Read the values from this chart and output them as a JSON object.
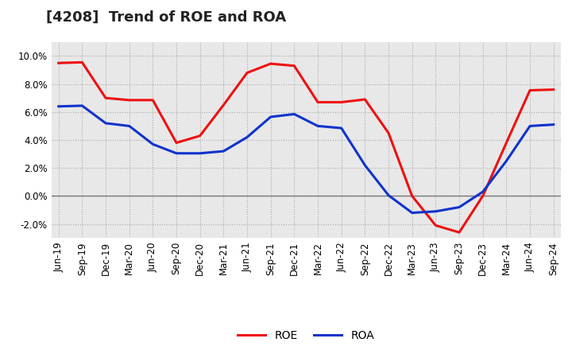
{
  "title": "[4208]  Trend of ROE and ROA",
  "x_labels": [
    "Jun-19",
    "Sep-19",
    "Dec-19",
    "Mar-20",
    "Jun-20",
    "Sep-20",
    "Dec-20",
    "Mar-21",
    "Jun-21",
    "Sep-21",
    "Dec-21",
    "Mar-22",
    "Jun-22",
    "Sep-22",
    "Dec-22",
    "Mar-23",
    "Jun-23",
    "Sep-23",
    "Dec-23",
    "Mar-24",
    "Jun-24",
    "Sep-24"
  ],
  "roe": [
    9.5,
    9.55,
    7.0,
    6.85,
    6.85,
    3.8,
    4.3,
    6.5,
    8.8,
    9.45,
    9.3,
    6.7,
    6.7,
    6.9,
    4.5,
    0.0,
    -2.1,
    -2.6,
    0.0,
    3.8,
    7.55,
    7.6
  ],
  "roa": [
    6.4,
    6.45,
    5.2,
    5.0,
    3.7,
    3.05,
    3.05,
    3.2,
    4.2,
    5.65,
    5.85,
    5.0,
    4.85,
    2.2,
    0.05,
    -1.2,
    -1.1,
    -0.8,
    0.3,
    2.5,
    5.0,
    5.1
  ],
  "roe_color": "#ee1111",
  "roa_color": "#1133cc",
  "ylim": [
    -3.0,
    11.0
  ],
  "yticks": [
    -2.0,
    0.0,
    2.0,
    4.0,
    6.0,
    8.0,
    10.0
  ],
  "background_color": "#ffffff",
  "plot_bg_color": "#e8e8e8",
  "grid_color": "#aaaaaa",
  "line_width": 2.2,
  "title_fontsize": 13,
  "legend_fontsize": 10,
  "tick_fontsize": 8.5
}
